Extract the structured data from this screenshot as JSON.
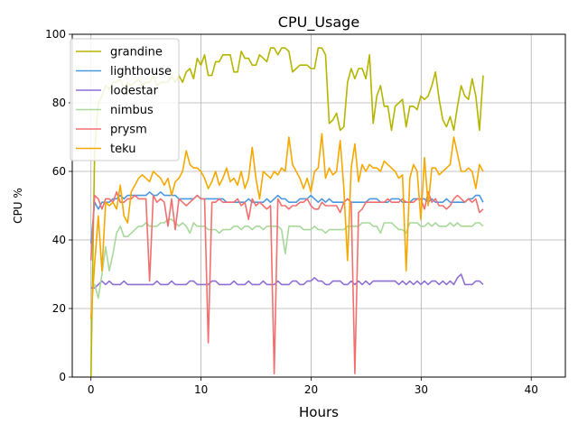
{
  "chart_data": {
    "type": "line",
    "title": "CPU_Usage",
    "xlabel": "Hours",
    "ylabel": "CPU %",
    "xlim": [
      -1.7,
      43.1
    ],
    "ylim": [
      0,
      100
    ],
    "xticks": [
      0,
      10,
      20,
      30,
      40
    ],
    "yticks": [
      0,
      20,
      40,
      60,
      80,
      100
    ],
    "grid": true,
    "legend_position": "upper-left",
    "x_step": 0.333,
    "series": [
      {
        "name": "grandine",
        "color": "#b5b500",
        "values": [
          0,
          66,
          80,
          82,
          85,
          84,
          86,
          86,
          87,
          84,
          86,
          85,
          86,
          87,
          85,
          86,
          86,
          88,
          85,
          86,
          86,
          86,
          88,
          86,
          88,
          86,
          89,
          90,
          87,
          93,
          91,
          94,
          88,
          88,
          92,
          92,
          94,
          94,
          94,
          89,
          89,
          95,
          93,
          93,
          91,
          91,
          94,
          93,
          92,
          96,
          96,
          94,
          96,
          96,
          95,
          89,
          90,
          91,
          91,
          91,
          90,
          90,
          96,
          96,
          94,
          74,
          75,
          77,
          72,
          73,
          86,
          90,
          87,
          90,
          90,
          87,
          94,
          74,
          82,
          85,
          79,
          79,
          72,
          79,
          80,
          81,
          73,
          79,
          79,
          78,
          82,
          81,
          82,
          85,
          89,
          81,
          75,
          73,
          76,
          72,
          79,
          85,
          82,
          81,
          87,
          82,
          72,
          88
        ]
      },
      {
        "name": "lighthouse",
        "color": "#4a98e0",
        "values": [
          39,
          51,
          49,
          51,
          51,
          51,
          52,
          52,
          53,
          52,
          53,
          53,
          53,
          53,
          53,
          53,
          54,
          53,
          53,
          54,
          53,
          53,
          53,
          53,
          52,
          52,
          52,
          52,
          52,
          53,
          52,
          52,
          52,
          52,
          52,
          52,
          52,
          51,
          51,
          51,
          51,
          51,
          51,
          52,
          51,
          51,
          51,
          51,
          52,
          51,
          52,
          53,
          52,
          52,
          51,
          51,
          51,
          52,
          52,
          52,
          53,
          52,
          51,
          52,
          51,
          52,
          51,
          51,
          51,
          51,
          52,
          51,
          51,
          51,
          51,
          51,
          52,
          52,
          52,
          51,
          51,
          51,
          52,
          52,
          52,
          51,
          51,
          51,
          52,
          52,
          52,
          52,
          51,
          52,
          51,
          51,
          51,
          52,
          51,
          51,
          51,
          51,
          51,
          52,
          52,
          53,
          53,
          51
        ]
      },
      {
        "name": "lodestar",
        "color": "#8f6fd4",
        "values": [
          26,
          26,
          27,
          28,
          27,
          28,
          27,
          27,
          27,
          28,
          27,
          27,
          27,
          27,
          27,
          27,
          27,
          27,
          28,
          27,
          27,
          27,
          28,
          27,
          27,
          27,
          27,
          28,
          28,
          27,
          27,
          27,
          27,
          28,
          28,
          27,
          27,
          27,
          27,
          28,
          27,
          27,
          27,
          28,
          27,
          27,
          27,
          28,
          27,
          27,
          27,
          28,
          27,
          27,
          27,
          28,
          28,
          27,
          27,
          28,
          28,
          29,
          28,
          28,
          27,
          27,
          28,
          28,
          28,
          27,
          27,
          28,
          27,
          28,
          27,
          28,
          27,
          28,
          28,
          28,
          28,
          28,
          28,
          28,
          27,
          28,
          27,
          28,
          27,
          28,
          27,
          28,
          27,
          28,
          28,
          27,
          28,
          27,
          28,
          27,
          29,
          30,
          27,
          27,
          27,
          28,
          28,
          27
        ]
      },
      {
        "name": "nimbus",
        "color": "#a8d89a",
        "values": [
          27,
          27,
          23,
          30,
          38,
          31,
          36,
          42,
          44,
          41,
          41,
          42,
          43,
          44,
          44,
          45,
          44,
          44,
          44,
          45,
          45,
          46,
          46,
          45,
          44,
          45,
          44,
          42,
          45,
          44,
          44,
          44,
          43,
          43,
          43,
          42,
          43,
          43,
          43,
          44,
          44,
          43,
          44,
          44,
          43,
          44,
          44,
          43,
          44,
          44,
          44,
          44,
          43,
          36,
          44,
          44,
          44,
          44,
          43,
          43,
          43,
          44,
          43,
          43,
          42,
          43,
          43,
          43,
          43,
          43,
          44,
          44,
          44,
          44,
          45,
          45,
          45,
          44,
          44,
          42,
          45,
          45,
          45,
          44,
          43,
          43,
          42,
          45,
          45,
          45,
          44,
          44,
          45,
          44,
          45,
          44,
          44,
          44,
          45,
          44,
          45,
          44,
          44,
          44,
          44,
          45,
          45,
          44
        ]
      },
      {
        "name": "prysm",
        "color": "#f07070",
        "values": [
          34,
          53,
          52,
          49,
          52,
          52,
          51,
          54,
          51,
          51,
          52,
          52,
          53,
          52,
          52,
          52,
          28,
          53,
          51,
          52,
          51,
          44,
          52,
          43,
          52,
          51,
          50,
          51,
          52,
          53,
          52,
          52,
          10,
          51,
          51,
          52,
          51,
          51,
          51,
          51,
          52,
          50,
          51,
          46,
          52,
          50,
          51,
          50,
          49,
          50,
          1,
          52,
          50,
          50,
          49,
          50,
          50,
          51,
          51,
          52,
          50,
          49,
          49,
          51,
          50,
          50,
          50,
          50,
          48,
          51,
          52,
          51,
          1,
          48,
          49,
          51,
          51,
          51,
          51,
          51,
          51,
          52,
          51,
          51,
          51,
          52,
          51,
          51,
          51,
          52,
          52,
          49,
          54,
          51,
          52,
          50,
          50,
          49,
          50,
          52,
          53,
          52,
          51,
          52,
          51,
          52,
          48,
          49
        ]
      },
      {
        "name": "teku",
        "color": "#f5a800",
        "values": [
          17,
          33,
          47,
          31,
          51,
          50,
          51,
          49,
          56,
          47,
          45,
          54,
          56,
          58,
          59,
          58,
          57,
          60,
          59,
          58,
          56,
          58,
          53,
          57,
          58,
          60,
          66,
          62,
          61,
          61,
          60,
          58,
          55,
          57,
          60,
          56,
          58,
          61,
          57,
          58,
          56,
          60,
          55,
          58,
          67,
          58,
          52,
          60,
          59,
          58,
          60,
          59,
          61,
          60,
          70,
          62,
          60,
          58,
          55,
          58,
          54,
          60,
          61,
          71,
          58,
          61,
          59,
          60,
          69,
          55,
          34,
          61,
          68,
          57,
          62,
          60,
          62,
          61,
          61,
          60,
          63,
          62,
          61,
          60,
          58,
          59,
          31,
          58,
          62,
          60,
          46,
          64,
          50,
          61,
          61,
          59,
          60,
          61,
          62,
          70,
          65,
          60,
          60,
          61,
          60,
          55,
          62,
          60
        ]
      }
    ]
  }
}
